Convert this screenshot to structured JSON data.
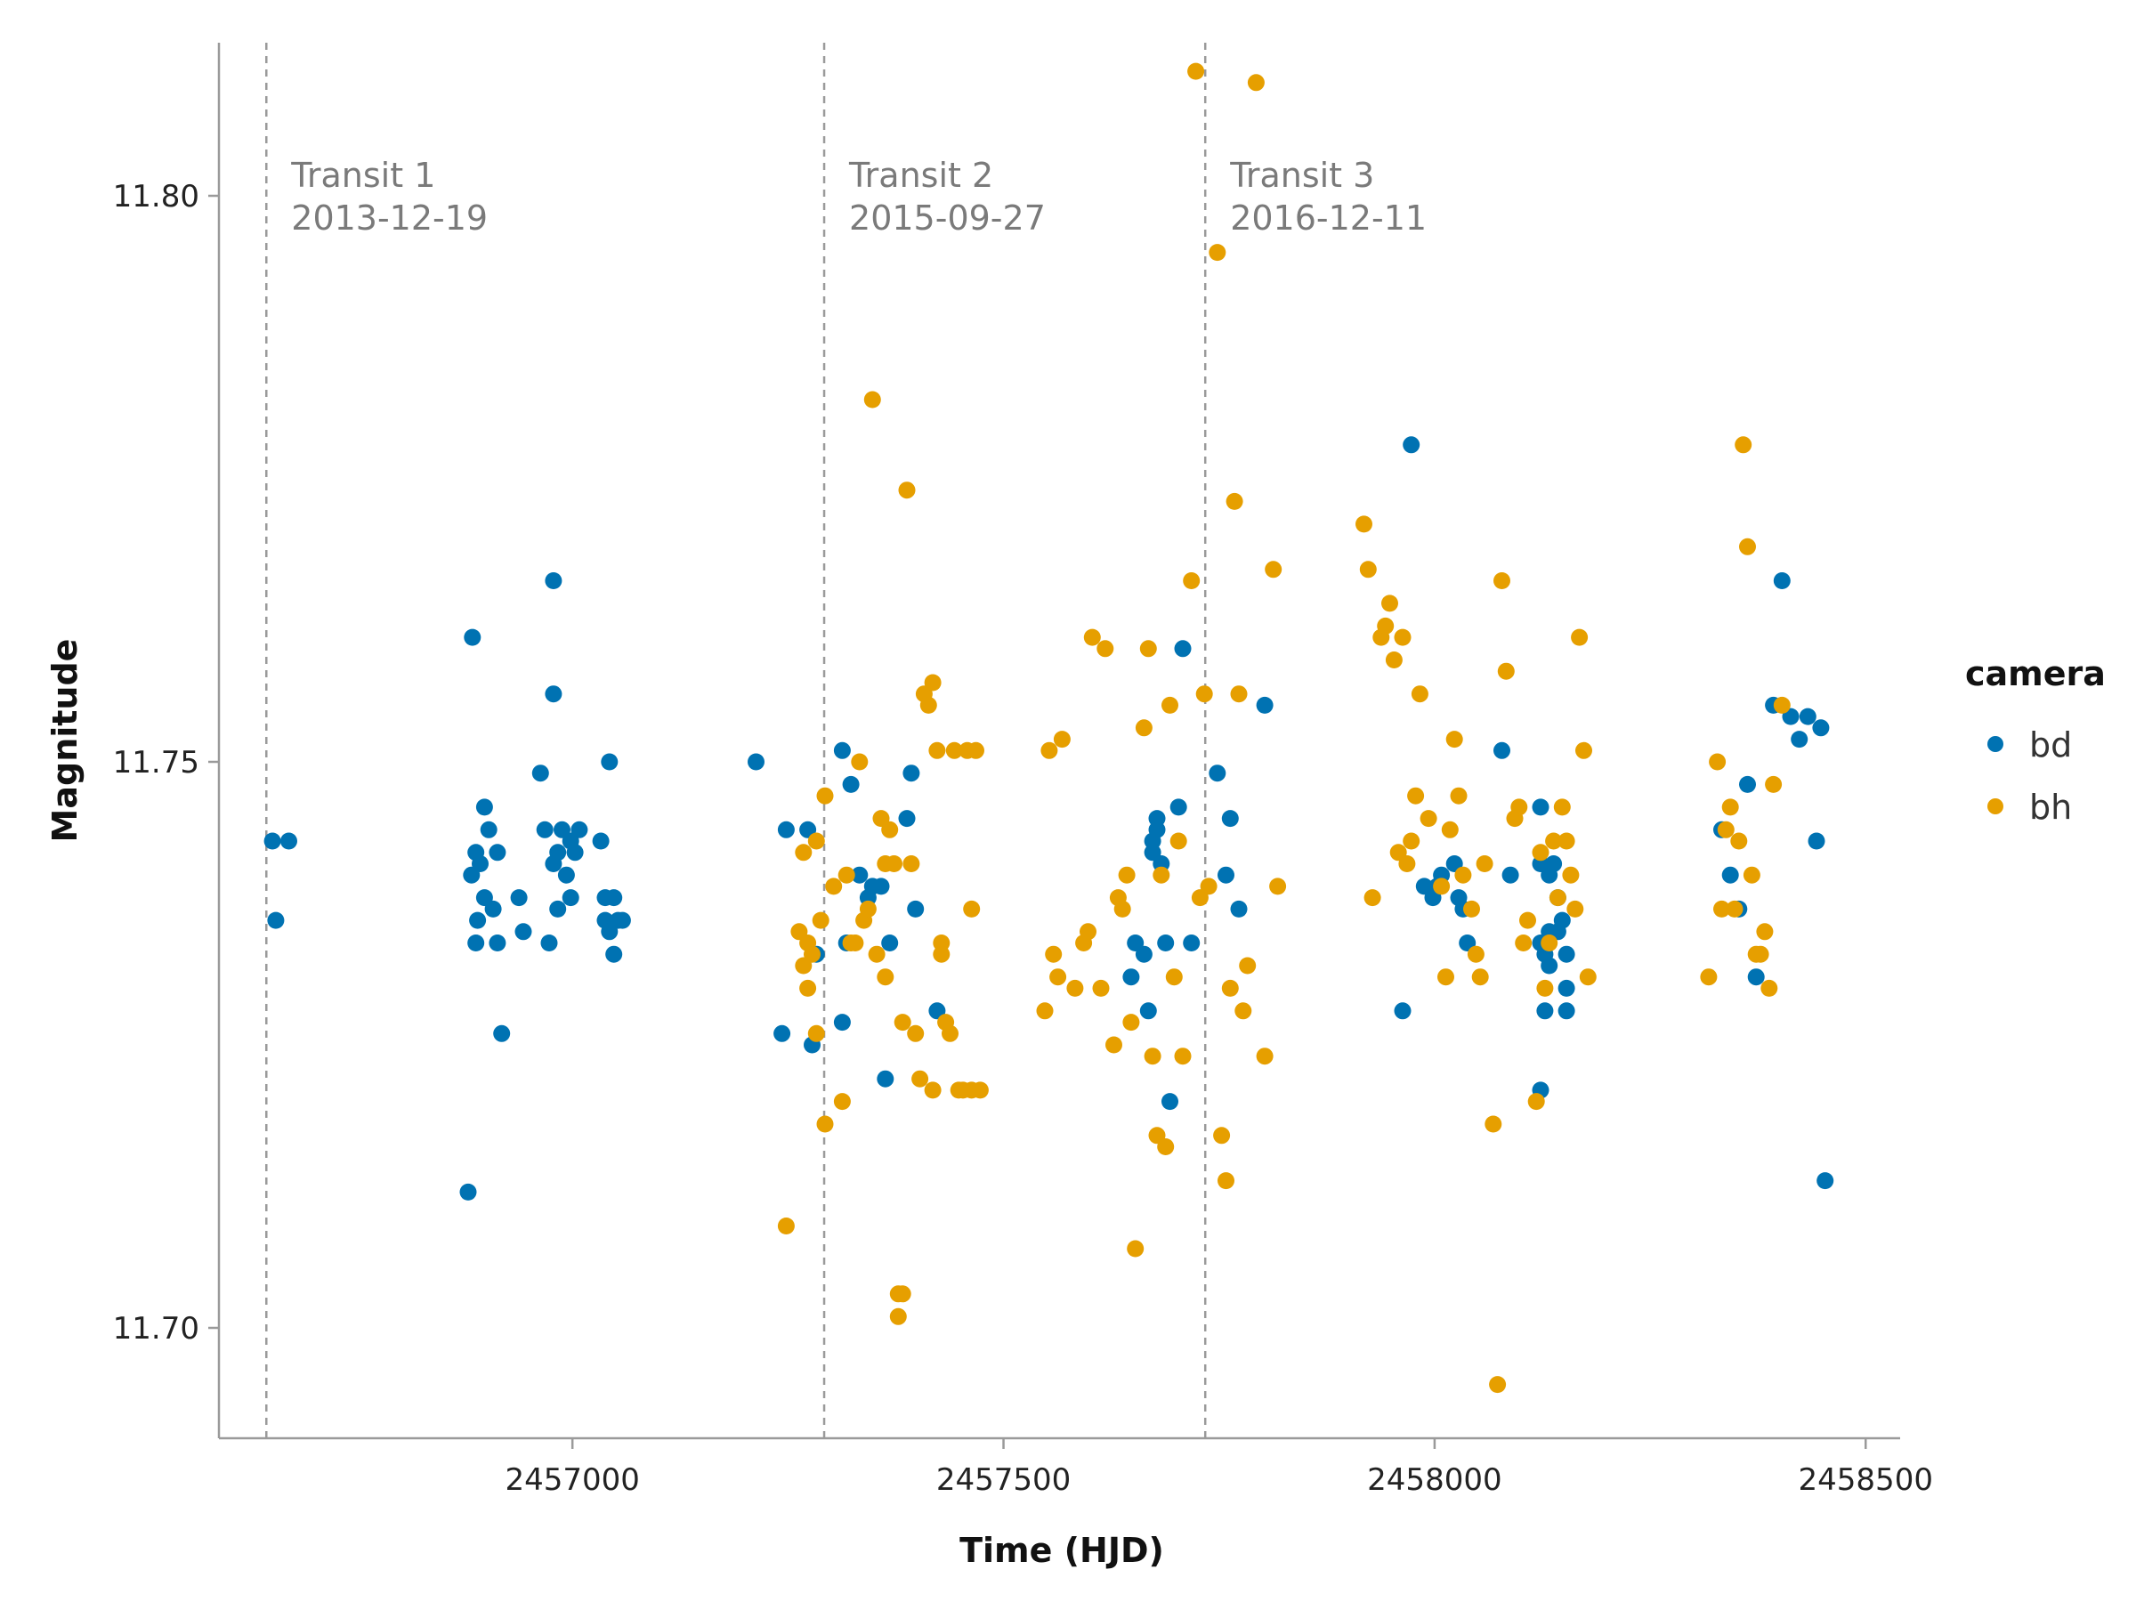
{
  "chart_data": {
    "type": "scatter",
    "xlabel": "Time (HJD)",
    "ylabel": "Magnitude",
    "xlim": [
      2456590,
      2458540
    ],
    "ylim": [
      11.69,
      11.815
    ],
    "x_ticks": [
      2457000,
      2457500,
      2458000,
      2458500
    ],
    "x_tick_labels": [
      "2457000",
      "2457500",
      "2458000",
      "2458500"
    ],
    "y_ticks": [
      11.7,
      11.75,
      11.8
    ],
    "y_tick_labels": [
      "11.70",
      "11.75",
      "11.80"
    ],
    "grid": false,
    "legend": {
      "title": "camera",
      "position": "right"
    },
    "transits": [
      {
        "x": 2456645,
        "label": "Transit 1",
        "date": "2013-12-19"
      },
      {
        "x": 2457292,
        "label": "Transit 2",
        "date": "2015-09-27"
      },
      {
        "x": 2457734,
        "label": "Transit 3",
        "date": "2016-12-11"
      }
    ],
    "series": [
      {
        "name": "bd",
        "color": "#0072b2",
        "points": [
          [
            2456652,
            11.743
          ],
          [
            2456671,
            11.743
          ],
          [
            2456656,
            11.736
          ],
          [
            2456879,
            11.712
          ],
          [
            2456884,
            11.761
          ],
          [
            2456883,
            11.74
          ],
          [
            2456888,
            11.742
          ],
          [
            2456893,
            11.741
          ],
          [
            2456898,
            11.738
          ],
          [
            2456890,
            11.736
          ],
          [
            2456888,
            11.734
          ],
          [
            2456898,
            11.746
          ],
          [
            2456903,
            11.744
          ],
          [
            2456908,
            11.737
          ],
          [
            2456913,
            11.742
          ],
          [
            2456913,
            11.734
          ],
          [
            2456918,
            11.726
          ],
          [
            2456938,
            11.738
          ],
          [
            2456943,
            11.735
          ],
          [
            2456963,
            11.749
          ],
          [
            2456968,
            11.744
          ],
          [
            2456973,
            11.734
          ],
          [
            2456978,
            11.741
          ],
          [
            2456983,
            11.742
          ],
          [
            2456983,
            11.737
          ],
          [
            2456978,
            11.756
          ],
          [
            2456978,
            11.766
          ],
          [
            2456988,
            11.744
          ],
          [
            2456993,
            11.74
          ],
          [
            2456998,
            11.738
          ],
          [
            2456998,
            11.743
          ],
          [
            2457003,
            11.742
          ],
          [
            2457008,
            11.744
          ],
          [
            2457033,
            11.743
          ],
          [
            2457038,
            11.738
          ],
          [
            2457038,
            11.736
          ],
          [
            2457043,
            11.75
          ],
          [
            2457043,
            11.735
          ],
          [
            2457048,
            11.738
          ],
          [
            2457048,
            11.733
          ],
          [
            2457053,
            11.736
          ],
          [
            2457058,
            11.736
          ],
          [
            2457213,
            11.75
          ],
          [
            2457243,
            11.726
          ],
          [
            2457248,
            11.744
          ],
          [
            2457273,
            11.744
          ],
          [
            2457278,
            11.725
          ],
          [
            2457283,
            11.733
          ],
          [
            2457313,
            11.751
          ],
          [
            2457313,
            11.727
          ],
          [
            2457318,
            11.734
          ],
          [
            2457323,
            11.748
          ],
          [
            2457333,
            11.74
          ],
          [
            2457343,
            11.738
          ],
          [
            2457348,
            11.739
          ],
          [
            2457358,
            11.739
          ],
          [
            2457363,
            11.722
          ],
          [
            2457368,
            11.734
          ],
          [
            2457388,
            11.745
          ],
          [
            2457393,
            11.749
          ],
          [
            2457398,
            11.737
          ],
          [
            2457423,
            11.728
          ],
          [
            2457648,
            11.731
          ],
          [
            2457653,
            11.734
          ],
          [
            2457663,
            11.733
          ],
          [
            2457668,
            11.728
          ],
          [
            2457673,
            11.743
          ],
          [
            2457678,
            11.745
          ],
          [
            2457673,
            11.742
          ],
          [
            2457678,
            11.744
          ],
          [
            2457683,
            11.741
          ],
          [
            2457688,
            11.734
          ],
          [
            2457693,
            11.72
          ],
          [
            2457703,
            11.746
          ],
          [
            2457708,
            11.76
          ],
          [
            2457718,
            11.734
          ],
          [
            2457748,
            11.749
          ],
          [
            2457758,
            11.74
          ],
          [
            2457763,
            11.745
          ],
          [
            2457773,
            11.737
          ],
          [
            2457803,
            11.755
          ],
          [
            2457963,
            11.728
          ],
          [
            2457973,
            11.778
          ],
          [
            2457988,
            11.739
          ],
          [
            2457998,
            11.738
          ],
          [
            2458003,
            11.739
          ],
          [
            2458008,
            11.74
          ],
          [
            2458023,
            11.741
          ],
          [
            2458028,
            11.738
          ],
          [
            2458033,
            11.737
          ],
          [
            2458038,
            11.734
          ],
          [
            2458078,
            11.751
          ],
          [
            2458088,
            11.74
          ],
          [
            2458123,
            11.746
          ],
          [
            2458128,
            11.733
          ],
          [
            2458133,
            11.74
          ],
          [
            2458133,
            11.735
          ],
          [
            2458133,
            11.732
          ],
          [
            2458138,
            11.741
          ],
          [
            2458143,
            11.738
          ],
          [
            2458143,
            11.735
          ],
          [
            2458148,
            11.736
          ],
          [
            2458153,
            11.733
          ],
          [
            2458153,
            11.73
          ],
          [
            2458123,
            11.741
          ],
          [
            2458123,
            11.734
          ],
          [
            2458128,
            11.728
          ],
          [
            2458123,
            11.721
          ],
          [
            2458153,
            11.728
          ],
          [
            2458333,
            11.744
          ],
          [
            2458343,
            11.74
          ],
          [
            2458353,
            11.737
          ],
          [
            2458363,
            11.748
          ],
          [
            2458393,
            11.755
          ],
          [
            2458403,
            11.766
          ],
          [
            2458413,
            11.754
          ],
          [
            2458423,
            11.752
          ],
          [
            2458433,
            11.754
          ],
          [
            2458443,
            11.743
          ],
          [
            2458448,
            11.753
          ],
          [
            2458453,
            11.713
          ],
          [
            2458373,
            11.731
          ]
        ]
      },
      {
        "name": "bh",
        "color": "#e69f00",
        "points": [
          [
            2457248,
            11.709
          ],
          [
            2457263,
            11.735
          ],
          [
            2457268,
            11.732
          ],
          [
            2457268,
            11.742
          ],
          [
            2457273,
            11.734
          ],
          [
            2457273,
            11.73
          ],
          [
            2457278,
            11.733
          ],
          [
            2457283,
            11.726
          ],
          [
            2457283,
            11.743
          ],
          [
            2457288,
            11.736
          ],
          [
            2457293,
            11.718
          ],
          [
            2457293,
            11.747
          ],
          [
            2457303,
            11.739
          ],
          [
            2457313,
            11.72
          ],
          [
            2457318,
            11.74
          ],
          [
            2457323,
            11.734
          ],
          [
            2457328,
            11.734
          ],
          [
            2457333,
            11.75
          ],
          [
            2457338,
            11.736
          ],
          [
            2457343,
            11.737
          ],
          [
            2457348,
            11.782
          ],
          [
            2457353,
            11.733
          ],
          [
            2457358,
            11.745
          ],
          [
            2457363,
            11.741
          ],
          [
            2457363,
            11.731
          ],
          [
            2457368,
            11.744
          ],
          [
            2457373,
            11.741
          ],
          [
            2457378,
            11.703
          ],
          [
            2457378,
            11.701
          ],
          [
            2457383,
            11.703
          ],
          [
            2457383,
            11.727
          ],
          [
            2457388,
            11.774
          ],
          [
            2457393,
            11.741
          ],
          [
            2457398,
            11.726
          ],
          [
            2457403,
            11.722
          ],
          [
            2457408,
            11.756
          ],
          [
            2457413,
            11.755
          ],
          [
            2457418,
            11.721
          ],
          [
            2457418,
            11.757
          ],
          [
            2457423,
            11.751
          ],
          [
            2457428,
            11.734
          ],
          [
            2457428,
            11.733
          ],
          [
            2457433,
            11.727
          ],
          [
            2457438,
            11.726
          ],
          [
            2457443,
            11.751
          ],
          [
            2457448,
            11.721
          ],
          [
            2457453,
            11.721
          ],
          [
            2457458,
            11.751
          ],
          [
            2457463,
            11.737
          ],
          [
            2457463,
            11.721
          ],
          [
            2457468,
            11.751
          ],
          [
            2457473,
            11.721
          ],
          [
            2457548,
            11.728
          ],
          [
            2457553,
            11.751
          ],
          [
            2457558,
            11.733
          ],
          [
            2457563,
            11.731
          ],
          [
            2457568,
            11.752
          ],
          [
            2457583,
            11.73
          ],
          [
            2457593,
            11.734
          ],
          [
            2457598,
            11.735
          ],
          [
            2457603,
            11.761
          ],
          [
            2457613,
            11.73
          ],
          [
            2457618,
            11.76
          ],
          [
            2457628,
            11.725
          ],
          [
            2457633,
            11.738
          ],
          [
            2457638,
            11.737
          ],
          [
            2457643,
            11.74
          ],
          [
            2457648,
            11.727
          ],
          [
            2457653,
            11.707
          ],
          [
            2457663,
            11.753
          ],
          [
            2457668,
            11.76
          ],
          [
            2457673,
            11.724
          ],
          [
            2457678,
            11.717
          ],
          [
            2457683,
            11.74
          ],
          [
            2457688,
            11.716
          ],
          [
            2457693,
            11.755
          ],
          [
            2457698,
            11.731
          ],
          [
            2457703,
            11.743
          ],
          [
            2457708,
            11.724
          ],
          [
            2457718,
            11.766
          ],
          [
            2457723,
            11.811
          ],
          [
            2457728,
            11.738
          ],
          [
            2457733,
            11.756
          ],
          [
            2457738,
            11.739
          ],
          [
            2457748,
            11.795
          ],
          [
            2457753,
            11.717
          ],
          [
            2457758,
            11.713
          ],
          [
            2457763,
            11.73
          ],
          [
            2457768,
            11.773
          ],
          [
            2457773,
            11.756
          ],
          [
            2457778,
            11.728
          ],
          [
            2457783,
            11.732
          ],
          [
            2457793,
            11.81
          ],
          [
            2457803,
            11.724
          ],
          [
            2457813,
            11.767
          ],
          [
            2457818,
            11.739
          ],
          [
            2457918,
            11.771
          ],
          [
            2457923,
            11.767
          ],
          [
            2457928,
            11.738
          ],
          [
            2457938,
            11.761
          ],
          [
            2457943,
            11.762
          ],
          [
            2457948,
            11.764
          ],
          [
            2457953,
            11.759
          ],
          [
            2457958,
            11.742
          ],
          [
            2457963,
            11.761
          ],
          [
            2457968,
            11.741
          ],
          [
            2457973,
            11.743
          ],
          [
            2457978,
            11.747
          ],
          [
            2457983,
            11.756
          ],
          [
            2457993,
            11.745
          ],
          [
            2458008,
            11.739
          ],
          [
            2458013,
            11.731
          ],
          [
            2458018,
            11.744
          ],
          [
            2458023,
            11.752
          ],
          [
            2458028,
            11.747
          ],
          [
            2458033,
            11.74
          ],
          [
            2458043,
            11.737
          ],
          [
            2458048,
            11.733
          ],
          [
            2458053,
            11.731
          ],
          [
            2458058,
            11.741
          ],
          [
            2458068,
            11.718
          ],
          [
            2458073,
            11.695
          ],
          [
            2458078,
            11.766
          ],
          [
            2458083,
            11.758
          ],
          [
            2458093,
            11.745
          ],
          [
            2458098,
            11.746
          ],
          [
            2458103,
            11.734
          ],
          [
            2458108,
            11.736
          ],
          [
            2458118,
            11.72
          ],
          [
            2458123,
            11.742
          ],
          [
            2458128,
            11.73
          ],
          [
            2458133,
            11.734
          ],
          [
            2458138,
            11.743
          ],
          [
            2458143,
            11.738
          ],
          [
            2458148,
            11.746
          ],
          [
            2458153,
            11.743
          ],
          [
            2458158,
            11.74
          ],
          [
            2458163,
            11.737
          ],
          [
            2458168,
            11.761
          ],
          [
            2458173,
            11.751
          ],
          [
            2458178,
            11.731
          ],
          [
            2458318,
            11.731
          ],
          [
            2458328,
            11.75
          ],
          [
            2458333,
            11.737
          ],
          [
            2458338,
            11.744
          ],
          [
            2458343,
            11.746
          ],
          [
            2458348,
            11.737
          ],
          [
            2458353,
            11.743
          ],
          [
            2458358,
            11.778
          ],
          [
            2458363,
            11.769
          ],
          [
            2458368,
            11.74
          ],
          [
            2458373,
            11.733
          ],
          [
            2458378,
            11.733
          ],
          [
            2458383,
            11.735
          ],
          [
            2458388,
            11.73
          ],
          [
            2458393,
            11.748
          ],
          [
            2458403,
            11.755
          ]
        ]
      }
    ]
  }
}
